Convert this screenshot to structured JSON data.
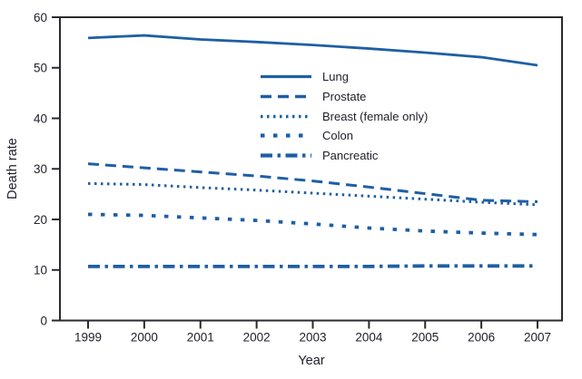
{
  "chart_data": {
    "type": "line",
    "title": "",
    "xlabel": "Year",
    "ylabel": "Death rate",
    "x": [
      1999,
      2000,
      2001,
      2002,
      2003,
      2004,
      2005,
      2006,
      2007
    ],
    "ylim": [
      0,
      60
    ],
    "yticks": [
      0,
      10,
      20,
      30,
      40,
      50,
      60
    ],
    "grid": false,
    "legend_position": "upper-center",
    "line_color": "#1f5fa3",
    "axis_color": "#2b292d",
    "text_color": "#20202c",
    "series": [
      {
        "name": "Lung",
        "dash": "solid",
        "values": [
          55.9,
          56.4,
          55.6,
          55.1,
          54.5,
          53.8,
          53.0,
          52.1,
          50.5
        ]
      },
      {
        "name": "Prostate",
        "dash": "long-dash",
        "values": [
          31.0,
          30.2,
          29.4,
          28.6,
          27.6,
          26.4,
          25.1,
          23.8,
          23.5
        ]
      },
      {
        "name": "Breast (female only)",
        "dash": "dot",
        "values": [
          27.1,
          26.9,
          26.3,
          25.8,
          25.2,
          24.6,
          24.0,
          23.4,
          22.9
        ]
      },
      {
        "name": "Colon",
        "dash": "square-dash",
        "values": [
          21.0,
          20.8,
          20.3,
          19.8,
          19.1,
          18.3,
          17.7,
          17.3,
          17.0
        ]
      },
      {
        "name": "Pancreatic",
        "dash": "dash-dot",
        "values": [
          10.7,
          10.7,
          10.7,
          10.7,
          10.7,
          10.7,
          10.8,
          10.8,
          10.8
        ]
      }
    ]
  }
}
